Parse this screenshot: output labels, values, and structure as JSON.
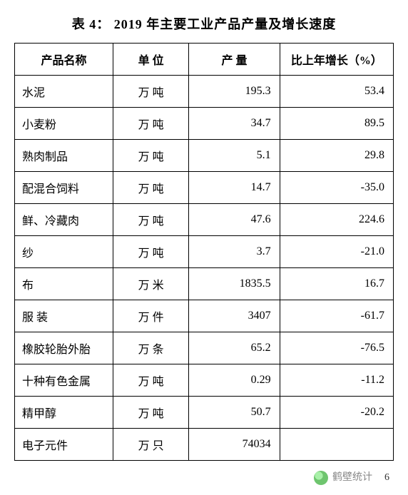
{
  "title": "表 4：  2019 年主要工业产品产量及增长速度",
  "columns": {
    "name": "产品名称",
    "unit": "单  位",
    "qty": "产  量",
    "growth": "比上年增长（%）"
  },
  "rows": [
    {
      "name": "水泥",
      "unit": "万  吨",
      "qty": "195.3",
      "growth": "53.4"
    },
    {
      "name": "小麦粉",
      "unit": "万  吨",
      "qty": "34.7",
      "growth": "89.5"
    },
    {
      "name": "熟肉制品",
      "unit": "万  吨",
      "qty": "5.1",
      "growth": "29.8"
    },
    {
      "name": "配混合饲料",
      "unit": "万  吨",
      "qty": "14.7",
      "growth": "-35.0"
    },
    {
      "name": "鲜、冷藏肉",
      "unit": "万  吨",
      "qty": "47.6",
      "growth": "224.6"
    },
    {
      "name": "纱",
      "unit": "万  吨",
      "qty": "3.7",
      "growth": "-21.0"
    },
    {
      "name": "布",
      "unit": "万  米",
      "qty": "1835.5",
      "growth": "16.7"
    },
    {
      "name": "服  装",
      "unit": "万  件",
      "qty": "3407",
      "growth": "-61.7"
    },
    {
      "name": "橡胶轮胎外胎",
      "unit": "万  条",
      "qty": "65.2",
      "growth": "-76.5"
    },
    {
      "name": "十种有色金属",
      "unit": "万  吨",
      "qty": "0.29",
      "growth": "-11.2"
    },
    {
      "name": "精甲醇",
      "unit": "万  吨",
      "qty": "50.7",
      "growth": "-20.2"
    },
    {
      "name": "电子元件",
      "unit": "万  只",
      "qty": "74034",
      "growth": ""
    }
  ],
  "footer": {
    "source": "鹤壁统计",
    "page": "6"
  }
}
